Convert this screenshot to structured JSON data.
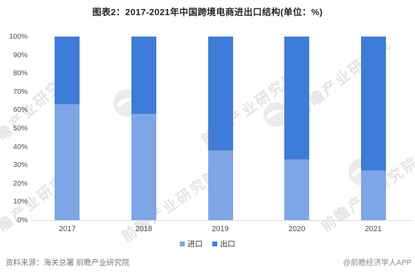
{
  "title": "图表2：2017-2021年中国跨境电商进出口结构(单位：%)",
  "chart_data": {
    "type": "bar",
    "stacked": true,
    "title": "图表2：2017-2021年中国跨境电商进出口结构(单位：%)",
    "categories": [
      "2017",
      "2018",
      "2019",
      "2020",
      "2021"
    ],
    "series": [
      {
        "name": "进口",
        "color": "#7ea6e6",
        "values": [
          63,
          58,
          38,
          33,
          27
        ]
      },
      {
        "name": "出口",
        "color": "#3d7cd9",
        "values": [
          37,
          42,
          62,
          67,
          73
        ]
      }
    ],
    "xlabel": "",
    "ylabel": "",
    "ylim": [
      0,
      100
    ],
    "yticks": [
      0,
      10,
      20,
      30,
      40,
      50,
      60,
      70,
      80,
      90,
      100
    ],
    "ytick_suffix": "%",
    "grid": false,
    "legend_position": "bottom"
  },
  "footer": {
    "source": "资料来源：海关总署 前瞻产业研究院",
    "credit": "@前瞻经济学人APP"
  },
  "watermark": {
    "text": "前瞻产业研究院"
  }
}
